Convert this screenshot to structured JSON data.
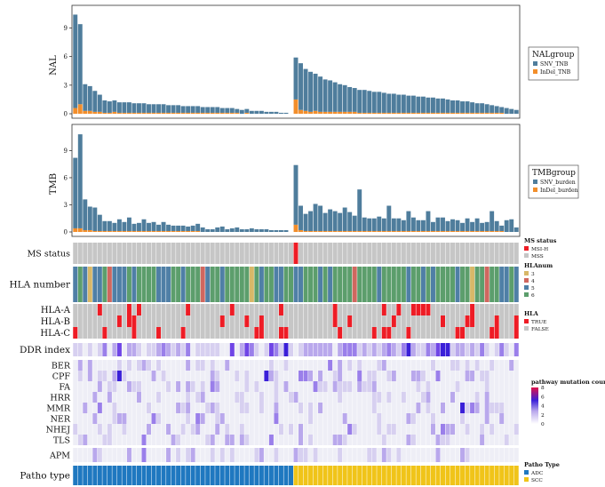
{
  "chart_data": [
    {
      "type": "bar",
      "stacked": true,
      "ylabel": "NAL",
      "yticks": [
        0,
        3,
        6,
        9
      ],
      "ylim": [
        0,
        11
      ],
      "legend": {
        "title": "NALgroup",
        "placement": "right"
      },
      "series": [
        {
          "name": "SNV_TNB",
          "color": "#4f7d9c",
          "values": [
            9.8,
            8.4,
            2.8,
            2.6,
            2.2,
            1.8,
            1.3,
            1.2,
            1.2,
            1.1,
            1.1,
            1.1,
            1.0,
            1.0,
            1.0,
            0.9,
            0.9,
            0.9,
            0.9,
            0.8,
            0.8,
            0.8,
            0.7,
            0.7,
            0.7,
            0.7,
            0.6,
            0.6,
            0.6,
            0.6,
            0.5,
            0.5,
            0.5,
            0.4,
            0.4,
            0.4,
            0.3,
            0.3,
            0.3,
            0.2,
            0.2,
            0.2,
            0.1,
            0.1,
            0.0,
            4.4,
            4.9,
            4.4,
            4.2,
            3.9,
            3.7,
            3.4,
            3.3,
            3.1,
            2.9,
            2.8,
            2.6,
            2.5,
            2.4,
            2.4,
            2.3,
            2.2,
            2.2,
            2.1,
            2.0,
            2.0,
            1.9,
            1.9,
            1.8,
            1.8,
            1.7,
            1.7,
            1.6,
            1.6,
            1.5,
            1.5,
            1.4,
            1.3,
            1.3,
            1.2,
            1.2,
            1.1,
            1.0,
            1.0,
            0.9,
            0.8,
            0.7,
            0.6,
            0.6,
            0.5,
            0.4
          ]
        },
        {
          "name": "InDel_TNB",
          "color": "#f28e2b",
          "values": [
            0.6,
            1.0,
            0.3,
            0.3,
            0.2,
            0.2,
            0.1,
            0.1,
            0.2,
            0.1,
            0.1,
            0.1,
            0.1,
            0.1,
            0.1,
            0.1,
            0.1,
            0.1,
            0.1,
            0.1,
            0.1,
            0.1,
            0.1,
            0.1,
            0.1,
            0.1,
            0.1,
            0.1,
            0.1,
            0.1,
            0.1,
            0.1,
            0.1,
            0.1,
            0.0,
            0.1,
            0.0,
            0.0,
            0.0,
            0.0,
            0.0,
            0.0,
            0.0,
            0.0,
            0.0,
            1.5,
            0.4,
            0.3,
            0.2,
            0.3,
            0.2,
            0.2,
            0.2,
            0.2,
            0.2,
            0.2,
            0.2,
            0.2,
            0.1,
            0.1,
            0.1,
            0.1,
            0.1,
            0.1,
            0.1,
            0.1,
            0.1,
            0.1,
            0.1,
            0.1,
            0.1,
            0.1,
            0.1,
            0.1,
            0.1,
            0.1,
            0.1,
            0.1,
            0.1,
            0.1,
            0.1,
            0.1,
            0.1,
            0.1,
            0.1,
            0.1,
            0.1,
            0.1,
            0.0,
            0.0,
            0.0
          ]
        }
      ]
    },
    {
      "type": "bar",
      "stacked": true,
      "ylabel": "TMB",
      "yticks": [
        0,
        3,
        6,
        9
      ],
      "ylim": [
        0,
        11.5
      ],
      "legend": {
        "title": "TMBgroup",
        "placement": "right"
      },
      "series": [
        {
          "name": "SNV_burden",
          "color": "#4f7d9c",
          "values": [
            7.8,
            10.4,
            3.4,
            2.6,
            2.6,
            1.8,
            1.1,
            1.1,
            0.9,
            1.3,
            1.0,
            1.5,
            0.8,
            0.9,
            1.3,
            0.9,
            1.0,
            0.7,
            1.0,
            0.7,
            0.6,
            0.6,
            0.6,
            0.5,
            0.6,
            0.8,
            0.5,
            0.3,
            0.3,
            0.5,
            0.6,
            0.3,
            0.4,
            0.5,
            0.3,
            0.3,
            0.4,
            0.3,
            0.3,
            0.3,
            0.2,
            0.2,
            0.2,
            0.2,
            0.0,
            6.6,
            2.7,
            1.9,
            2.2,
            3.0,
            2.8,
            2.0,
            2.4,
            2.2,
            2.0,
            2.6,
            2.1,
            1.7,
            4.6,
            1.5,
            1.4,
            1.4,
            1.6,
            1.4,
            2.8,
            1.4,
            1.4,
            1.2,
            2.2,
            1.5,
            1.2,
            1.2,
            2.2,
            1.0,
            1.5,
            1.5,
            1.1,
            1.3,
            1.2,
            0.9,
            1.4,
            1.0,
            1.4,
            0.9,
            1.0,
            2.2,
            1.1,
            0.6,
            1.3,
            1.4,
            0.5
          ]
        },
        {
          "name": "InDel_burden",
          "color": "#f28e2b",
          "values": [
            0.4,
            0.4,
            0.2,
            0.2,
            0.1,
            0.1,
            0.1,
            0.1,
            0.1,
            0.1,
            0.1,
            0.1,
            0.1,
            0.1,
            0.1,
            0.1,
            0.1,
            0.1,
            0.1,
            0.1,
            0.1,
            0.1,
            0.1,
            0.1,
            0.1,
            0.1,
            0.0,
            0.0,
            0.0,
            0.0,
            0.0,
            0.0,
            0.0,
            0.0,
            0.0,
            0.0,
            0.0,
            0.0,
            0.0,
            0.0,
            0.0,
            0.0,
            0.0,
            0.0,
            0.0,
            0.8,
            0.2,
            0.1,
            0.1,
            0.1,
            0.1,
            0.1,
            0.1,
            0.1,
            0.1,
            0.1,
            0.1,
            0.1,
            0.1,
            0.1,
            0.1,
            0.1,
            0.1,
            0.1,
            0.1,
            0.1,
            0.1,
            0.1,
            0.1,
            0.1,
            0.1,
            0.1,
            0.1,
            0.1,
            0.1,
            0.1,
            0.1,
            0.1,
            0.1,
            0.1,
            0.1,
            0.1,
            0.1,
            0.1,
            0.1,
            0.1,
            0.1,
            0.1,
            0.0,
            0.0,
            0.0
          ]
        }
      ]
    },
    {
      "type": "heatmap",
      "n_samples": 91,
      "tracks": [
        {
          "label": "MS status",
          "kind": "categorical",
          "legend": {
            "title": "MS status",
            "entries": [
              {
                "name": "MSI-H",
                "color": "#ee1c25"
              },
              {
                "name": "MSS",
                "color": "#c6c6c6"
              }
            ]
          },
          "msi_h_samples": [
            45
          ]
        },
        {
          "label": "HLA number",
          "kind": "categorical",
          "legend": {
            "title": "HLAnum",
            "entries": [
              {
                "name": "3",
                "color": "#d8b868"
              },
              {
                "name": "4",
                "color": "#d0675f"
              },
              {
                "name": "5",
                "color": "#4f7fa6"
              },
              {
                "name": "6",
                "color": "#5c9e6c"
              }
            ]
          }
        },
        {
          "label": "HLA-A",
          "kind": "binary"
        },
        {
          "label": "HLA-B",
          "kind": "binary"
        },
        {
          "label": "HLA-C",
          "kind": "binary",
          "legend": {
            "title": "HLA",
            "entries": [
              {
                "name": "TRUE",
                "color": "#ee1c25"
              },
              {
                "name": "FALSE",
                "color": "#c6c6c6"
              }
            ]
          }
        },
        {
          "label": "DDR index",
          "kind": "count"
        },
        {
          "label": "BER",
          "kind": "count"
        },
        {
          "label": "CPF",
          "kind": "count"
        },
        {
          "label": "FA",
          "kind": "count"
        },
        {
          "label": "HRR",
          "kind": "count"
        },
        {
          "label": "MMR",
          "kind": "count"
        },
        {
          "label": "NER",
          "kind": "count"
        },
        {
          "label": "NHEJ",
          "kind": "count"
        },
        {
          "label": "TLS",
          "kind": "count"
        },
        {
          "label": "APM",
          "kind": "count"
        },
        {
          "label": "Patho type",
          "kind": "categorical",
          "legend": {
            "title": "Patho Type",
            "entries": [
              {
                "name": "ADC",
                "color": "#1f78c0"
              },
              {
                "name": "SCC",
                "color": "#f0c419"
              }
            ]
          },
          "adc_count": 45
        }
      ],
      "count_legend": {
        "title": "pathway mutation count",
        "ticks": [
          0,
          2,
          4,
          6,
          8
        ]
      }
    }
  ]
}
